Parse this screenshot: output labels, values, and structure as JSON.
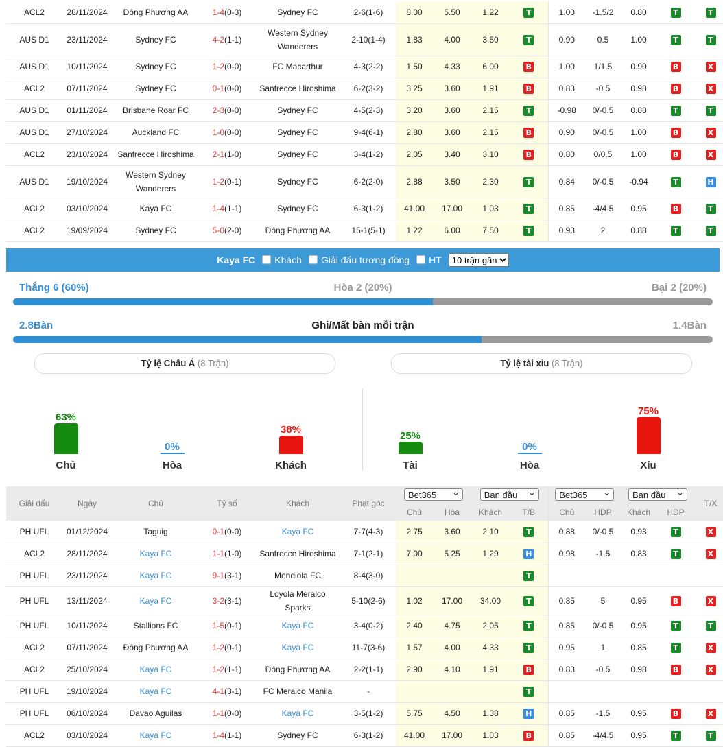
{
  "top_matches": [
    {
      "league": "ACL2",
      "date": "28/11/2024",
      "home": "Đông Phương AA",
      "home_hl": false,
      "score": "1-4",
      "ht": "(0-3)",
      "away": "Sydney FC",
      "away_hl": true,
      "corner": "2-6(1-6)",
      "o1": "8.00",
      "o2": "5.50",
      "o3": "1.22",
      "tb": "T",
      "h1": "1.00",
      "h2": "-1.5/2",
      "h3": "0.80",
      "hb": "T",
      "tx": "T",
      "tall": false
    },
    {
      "league": "AUS D1",
      "date": "23/11/2024",
      "home": "Sydney FC",
      "home_hl": true,
      "score": "4-2",
      "ht": "(1-1)",
      "away": "Western Sydney Wanderers",
      "away_hl": false,
      "corner": "2-10(1-4)",
      "o1": "1.83",
      "o2": "4.00",
      "o3": "3.50",
      "tb": "T",
      "h1": "0.90",
      "h2": "0.5",
      "h3": "1.00",
      "hb": "T",
      "tx": "T",
      "tall": true
    },
    {
      "league": "AUS D1",
      "date": "10/11/2024",
      "home": "Sydney FC",
      "home_hl": true,
      "score": "1-2",
      "ht": "(0-0)",
      "away": "FC Macarthur",
      "away_hl": false,
      "corner": "4-3(2-2)",
      "o1": "1.50",
      "o2": "4.33",
      "o3": "6.00",
      "tb": "B",
      "h1": "1.00",
      "h2": "1/1.5",
      "h3": "0.90",
      "hb": "B",
      "tx": "X",
      "tall": false
    },
    {
      "league": "ACL2",
      "date": "07/11/2024",
      "home": "Sydney FC",
      "home_hl": true,
      "score": "0-1",
      "ht": "(0-0)",
      "away": "Sanfrecce Hiroshima",
      "away_hl": false,
      "corner": "6-2(3-2)",
      "o1": "3.25",
      "o2": "3.60",
      "o3": "1.91",
      "tb": "B",
      "h1": "0.83",
      "h2": "-0.5",
      "h3": "0.98",
      "hb": "B",
      "tx": "X",
      "tall": false
    },
    {
      "league": "AUS D1",
      "date": "01/11/2024",
      "home": "Brisbane Roar FC",
      "home_hl": false,
      "score": "2-3",
      "ht": "(0-0)",
      "away": "Sydney FC",
      "away_hl": true,
      "corner": "4-5(2-3)",
      "o1": "3.20",
      "o2": "3.60",
      "o3": "2.15",
      "tb": "T",
      "h1": "-0.98",
      "h2": "0/-0.5",
      "h3": "0.88",
      "hb": "T",
      "tx": "T",
      "tall": false
    },
    {
      "league": "AUS D1",
      "date": "27/10/2024",
      "home": "Auckland FC",
      "home_hl": false,
      "score": "1-0",
      "ht": "(0-0)",
      "away": "Sydney FC",
      "away_hl": true,
      "corner": "9-4(6-1)",
      "o1": "2.80",
      "o2": "3.60",
      "o3": "2.15",
      "tb": "B",
      "h1": "0.90",
      "h2": "0/-0.5",
      "h3": "1.00",
      "hb": "B",
      "tx": "X",
      "tall": false
    },
    {
      "league": "ACL2",
      "date": "23/10/2024",
      "home": "Sanfrecce Hiroshima",
      "home_hl": false,
      "score": "2-1",
      "ht": "(1-0)",
      "away": "Sydney FC",
      "away_hl": true,
      "corner": "3-4(1-2)",
      "o1": "2.05",
      "o2": "3.40",
      "o3": "3.10",
      "tb": "B",
      "h1": "0.80",
      "h2": "0/0.5",
      "h3": "1.00",
      "hb": "B",
      "tx": "X",
      "tall": false
    },
    {
      "league": "AUS D1",
      "date": "19/10/2024",
      "home": "Western Sydney Wanderers",
      "home_hl": false,
      "score": "1-2",
      "ht": "(0-1)",
      "away": "Sydney FC",
      "away_hl": true,
      "corner": "6-2(2-0)",
      "o1": "2.88",
      "o2": "3.50",
      "o3": "2.30",
      "tb": "T",
      "h1": "0.84",
      "h2": "0/-0.5",
      "h3": "-0.94",
      "hb": "T",
      "tx": "H",
      "tall": true
    },
    {
      "league": "ACL2",
      "date": "03/10/2024",
      "home": "Kaya FC",
      "home_hl": false,
      "score": "1-4",
      "ht": "(1-1)",
      "away": "Sydney FC",
      "away_hl": true,
      "corner": "6-3(1-2)",
      "o1": "41.00",
      "o2": "17.00",
      "o3": "1.03",
      "tb": "T",
      "h1": "0.85",
      "h2": "-4/4.5",
      "h3": "0.95",
      "hb": "B",
      "tx": "T",
      "tall": false
    },
    {
      "league": "ACL2",
      "date": "19/09/2024",
      "home": "Sydney FC",
      "home_hl": true,
      "score": "5-0",
      "ht": "(2-0)",
      "away": "Đông Phương AA",
      "away_hl": false,
      "corner": "15-1(5-1)",
      "o1": "1.22",
      "o2": "6.00",
      "o3": "7.50",
      "tb": "T",
      "h1": "0.93",
      "h2": "2",
      "h3": "0.88",
      "hb": "T",
      "tx": "T",
      "tall": false
    }
  ],
  "filter_bar": {
    "team": "Kaya FC",
    "opt_away": "Khách",
    "opt_same_league": "Giải đấu tương đồng",
    "opt_ht": "HT",
    "recent_select": "10 trận gần"
  },
  "stats": {
    "win_text": "Thắng 6 (60%)",
    "draw_text": "Hòa 2 (20%)",
    "loss_text": "Bại 2 (20%)",
    "win_fraction": 0.6,
    "goals_for": "2.8Bàn",
    "goals_title": "Ghi/Mất bàn mỗi trận",
    "goals_against": "1.4Bàn",
    "goals_fraction": 0.67
  },
  "asian": {
    "title": "Tỷ lệ Châu Á",
    "count": "(8 Trận)",
    "cols": [
      {
        "pct": "63%",
        "label": "Chủ",
        "value": 63,
        "color": "#148a0e"
      },
      {
        "pct": "0%",
        "label": "Hòa",
        "value": 0,
        "color": "#3a8fd6"
      },
      {
        "pct": "38%",
        "label": "Khách",
        "value": 38,
        "color": "#e8140e"
      }
    ]
  },
  "ou": {
    "title": "Tỷ lệ tài xỉu",
    "count": "(8 Trận)",
    "cols": [
      {
        "pct": "25%",
        "label": "Tài",
        "value": 25,
        "color": "#148a0e"
      },
      {
        "pct": "0%",
        "label": "Hòa",
        "value": 0,
        "color": "#3a8fd6"
      },
      {
        "pct": "75%",
        "label": "Xỉu",
        "value": 75,
        "color": "#e8140e"
      }
    ]
  },
  "bottom_header": {
    "league": "Giải đấu",
    "date": "Ngày",
    "home": "Chủ",
    "score": "Tỷ số",
    "away": "Khách",
    "corner": "Phạt góc",
    "book1": "Bet365",
    "type1": "Ban đầu",
    "book2": "Bet365",
    "type2": "Ban đầu",
    "c1": "Chủ",
    "c2": "Hòa",
    "c3": "Khách",
    "c4": "T/B",
    "d1": "Chủ",
    "d2": "HDP",
    "d3": "Khách",
    "d4": "HDP",
    "tx": "T/X"
  },
  "bottom_matches": [
    {
      "league": "PH UFL",
      "date": "01/12/2024",
      "home": "Taguig",
      "home_hl": false,
      "score": "0-1",
      "ht": "(0-0)",
      "away": "Kaya FC",
      "away_hl": true,
      "corner": "7-7(4-3)",
      "o1": "2.75",
      "o2": "3.60",
      "o3": "2.10",
      "tb": "T",
      "h1": "0.88",
      "h2": "0/-0.5",
      "h3": "0.93",
      "hb": "T",
      "tx": "X"
    },
    {
      "league": "ACL2",
      "date": "28/11/2024",
      "home": "Kaya FC",
      "home_hl": true,
      "score": "1-1",
      "ht": "(1-0)",
      "away": "Sanfrecce Hiroshima",
      "away_hl": false,
      "corner": "7-1(2-1)",
      "o1": "7.00",
      "o2": "5.25",
      "o3": "1.29",
      "tb": "H",
      "h1": "0.98",
      "h2": "-1.5",
      "h3": "0.83",
      "hb": "T",
      "tx": "X"
    },
    {
      "league": "PH UFL",
      "date": "23/11/2024",
      "home": "Kaya FC",
      "home_hl": true,
      "score": "9-1",
      "ht": "(3-1)",
      "away": "Mendiola FC",
      "away_hl": false,
      "corner": "8-4(3-0)",
      "o1": "",
      "o2": "",
      "o3": "",
      "tb": "T",
      "h1": "",
      "h2": "",
      "h3": "",
      "hb": "",
      "tx": ""
    },
    {
      "league": "PH UFL",
      "date": "13/11/2024",
      "home": "Kaya FC",
      "home_hl": true,
      "score": "3-2",
      "ht": "(3-1)",
      "away": "Loyola Meralco Sparks",
      "away_hl": false,
      "corner": "5-10(2-6)",
      "o1": "1.02",
      "o2": "17.00",
      "o3": "34.00",
      "tb": "T",
      "h1": "0.85",
      "h2": "5",
      "h3": "0.95",
      "hb": "B",
      "tx": "X"
    },
    {
      "league": "PH UFL",
      "date": "10/11/2024",
      "home": "Stallions FC",
      "home_hl": false,
      "score": "1-5",
      "ht": "(0-1)",
      "away": "Kaya FC",
      "away_hl": true,
      "corner": "3-4(0-2)",
      "o1": "2.40",
      "o2": "4.75",
      "o3": "2.05",
      "tb": "T",
      "h1": "0.85",
      "h2": "0/-0.5",
      "h3": "0.95",
      "hb": "T",
      "tx": "T"
    },
    {
      "league": "ACL2",
      "date": "07/11/2024",
      "home": "Đông Phương AA",
      "home_hl": false,
      "score": "1-2",
      "ht": "(0-1)",
      "away": "Kaya FC",
      "away_hl": true,
      "corner": "11-7(3-6)",
      "o1": "1.57",
      "o2": "4.00",
      "o3": "4.33",
      "tb": "T",
      "h1": "0.95",
      "h2": "1",
      "h3": "0.85",
      "hb": "T",
      "tx": "X"
    },
    {
      "league": "ACL2",
      "date": "25/10/2024",
      "home": "Kaya FC",
      "home_hl": true,
      "score": "1-2",
      "ht": "(1-1)",
      "away": "Đông Phương AA",
      "away_hl": false,
      "corner": "2-2(1-1)",
      "o1": "2.90",
      "o2": "4.10",
      "o3": "1.91",
      "tb": "B",
      "h1": "0.83",
      "h2": "-0.5",
      "h3": "0.98",
      "hb": "B",
      "tx": "X"
    },
    {
      "league": "PH UFL",
      "date": "19/10/2024",
      "home": "Kaya FC",
      "home_hl": true,
      "score": "4-1",
      "ht": "(3-1)",
      "away": "FC Meralco Manila",
      "away_hl": false,
      "corner": "-",
      "o1": "",
      "o2": "",
      "o3": "",
      "tb": "T",
      "h1": "",
      "h2": "",
      "h3": "",
      "hb": "",
      "tx": ""
    },
    {
      "league": "PH UFL",
      "date": "06/10/2024",
      "home": "Davao Aguilas",
      "home_hl": false,
      "score": "1-1",
      "ht": "(0-0)",
      "away": "Kaya FC",
      "away_hl": true,
      "corner": "3-5(1-2)",
      "o1": "5.75",
      "o2": "4.50",
      "o3": "1.38",
      "tb": "H",
      "h1": "0.85",
      "h2": "-1.5",
      "h3": "0.95",
      "hb": "B",
      "tx": "X"
    },
    {
      "league": "ACL2",
      "date": "03/10/2024",
      "home": "Kaya FC",
      "home_hl": true,
      "score": "1-4",
      "ht": "(1-1)",
      "away": "Sydney FC",
      "away_hl": false,
      "corner": "6-3(1-2)",
      "o1": "41.00",
      "o2": "17.00",
      "o3": "1.03",
      "tb": "B",
      "h1": "0.85",
      "h2": "-4/4.5",
      "h3": "0.95",
      "hb": "T",
      "tx": "T"
    }
  ]
}
